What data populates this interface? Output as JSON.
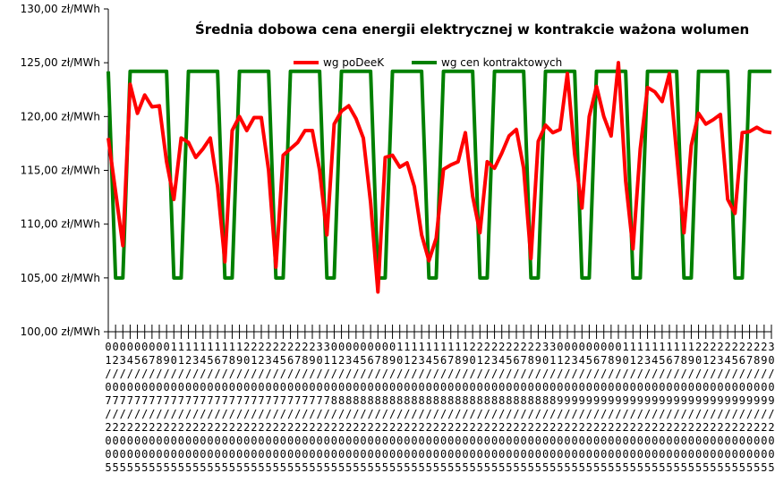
{
  "chart_data": {
    "type": "line",
    "title": "Średnia dobowa cena energii elektrycznej w kontrakcie ważona wolumen",
    "ylim": [
      100,
      130
    ],
    "yticks": [
      "100,00 zł/MWh",
      "105,00 zł/MWh",
      "110,00 zł/MWh",
      "115,00 zł/MWh",
      "120,00 zł/MWh",
      "125,00 zł/MWh",
      "130,00 zł/MWh"
    ],
    "grid": false,
    "legend_position": "top-center",
    "categories": [
      "01/07/2005",
      "02/07/2005",
      "03/07/2005",
      "04/07/2005",
      "05/07/2005",
      "06/07/2005",
      "07/07/2005",
      "08/07/2005",
      "09/07/2005",
      "10/07/2005",
      "11/07/2005",
      "12/07/2005",
      "13/07/2005",
      "14/07/2005",
      "15/07/2005",
      "16/07/2005",
      "17/07/2005",
      "18/07/2005",
      "19/07/2005",
      "20/07/2005",
      "21/07/2005",
      "22/07/2005",
      "23/07/2005",
      "24/07/2005",
      "25/07/2005",
      "26/07/2005",
      "27/07/2005",
      "28/07/2005",
      "29/07/2005",
      "30/07/2005",
      "31/07/2005",
      "01/08/2005",
      "02/08/2005",
      "03/08/2005",
      "04/08/2005",
      "05/08/2005",
      "06/08/2005",
      "07/08/2005",
      "08/08/2005",
      "09/08/2005",
      "10/08/2005",
      "11/08/2005",
      "12/08/2005",
      "13/08/2005",
      "14/08/2005",
      "15/08/2005",
      "16/08/2005",
      "17/08/2005",
      "18/08/2005",
      "19/08/2005",
      "20/08/2005",
      "21/08/2005",
      "22/08/2005",
      "23/08/2005",
      "24/08/2005",
      "25/08/2005",
      "26/08/2005",
      "27/08/2005",
      "28/08/2005",
      "29/08/2005",
      "30/08/2005",
      "31/08/2005",
      "01/09/2005",
      "02/09/2005",
      "03/09/2005",
      "04/09/2005",
      "05/09/2005",
      "06/09/2005",
      "07/09/2005",
      "08/09/2005",
      "09/09/2005",
      "10/09/2005",
      "11/09/2005",
      "12/09/2005",
      "13/09/2005",
      "14/09/2005",
      "15/09/2005",
      "16/09/2005",
      "17/09/2005",
      "18/09/2005",
      "19/09/2005",
      "20/09/2005",
      "21/09/2005",
      "22/09/2005",
      "23/09/2005",
      "24/09/2005",
      "25/09/2005",
      "26/09/2005",
      "27/09/2005",
      "28/09/2005",
      "29/09/2005",
      "30/09/2005"
    ],
    "series": [
      {
        "name": "wg poDeeK",
        "color": "#ff0000",
        "values": [
          118.0,
          113.0,
          108.0,
          123.0,
          120.3,
          122.0,
          120.9,
          121.0,
          115.8,
          112.3,
          118.0,
          117.6,
          116.2,
          117.0,
          118.0,
          113.5,
          106.5,
          118.7,
          120.0,
          118.7,
          119.9,
          119.9,
          115.0,
          106.0,
          116.4,
          117.0,
          117.6,
          118.7,
          118.7,
          115.0,
          109.0,
          119.3,
          120.5,
          121.0,
          119.8,
          118.0,
          112.0,
          103.7,
          116.2,
          116.4,
          115.3,
          115.7,
          113.5,
          109.0,
          106.6,
          108.7,
          115.1,
          115.5,
          115.8,
          118.5,
          112.6,
          109.2,
          115.8,
          115.2,
          116.6,
          118.2,
          118.8,
          115.2,
          106.8,
          117.7,
          119.2,
          118.5,
          118.8,
          124.0,
          116.5,
          111.5,
          120.0,
          122.8,
          120.0,
          118.2,
          125.0,
          114.0,
          107.7,
          117.0,
          122.7,
          122.3,
          121.4,
          124.0,
          116.5,
          109.2,
          117.3,
          120.3,
          119.3,
          119.7,
          120.2,
          112.3,
          111.0,
          118.5,
          118.6,
          119.0,
          118.6,
          118.5
        ]
      },
      {
        "name": "wg cen kontraktowych",
        "color": "#008000",
        "values": [
          124.2,
          105.0,
          105.0,
          124.2,
          124.2,
          124.2,
          124.2,
          124.2,
          124.2,
          105.0,
          105.0,
          124.2,
          124.2,
          124.2,
          124.2,
          124.2,
          105.0,
          105.0,
          124.2,
          124.2,
          124.2,
          124.2,
          124.2,
          105.0,
          105.0,
          124.2,
          124.2,
          124.2,
          124.2,
          124.2,
          105.0,
          105.0,
          124.2,
          124.2,
          124.2,
          124.2,
          124.2,
          105.0,
          105.0,
          124.2,
          124.2,
          124.2,
          124.2,
          124.2,
          105.0,
          105.0,
          124.2,
          124.2,
          124.2,
          124.2,
          124.2,
          105.0,
          105.0,
          124.2,
          124.2,
          124.2,
          124.2,
          124.2,
          105.0,
          105.0,
          124.2,
          124.2,
          124.2,
          124.2,
          124.2,
          105.0,
          105.0,
          124.2,
          124.2,
          124.2,
          124.2,
          124.2,
          105.0,
          105.0,
          124.2,
          124.2,
          124.2,
          124.2,
          124.2,
          105.0,
          105.0,
          124.2,
          124.2,
          124.2,
          124.2,
          124.2,
          105.0,
          105.0,
          124.2,
          124.2,
          124.2,
          124.2
        ]
      }
    ]
  }
}
